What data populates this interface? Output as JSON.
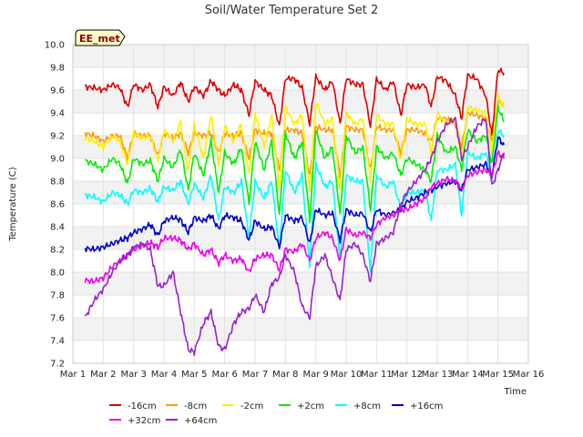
{
  "chart_data": {
    "type": "line",
    "title": "Soil/Water Temperature Set 2",
    "xlabel": "Time",
    "ylabel": "Temperature (C)",
    "badge": "EE_met",
    "ylim": [
      7.2,
      10.0
    ],
    "yticks": [
      "7.2",
      "7.4",
      "7.6",
      "7.8",
      "8.0",
      "8.2",
      "8.4",
      "8.6",
      "8.8",
      "9.0",
      "9.2",
      "9.4",
      "9.6",
      "9.8",
      "10.0"
    ],
    "xlim": [
      1,
      16
    ],
    "xticks": [
      "Mar 1",
      "Mar 2",
      "Mar 3",
      "Mar 4",
      "Mar 5",
      "Mar 6",
      "Mar 7",
      "Mar 8",
      "Mar 9",
      "Mar 10",
      "Mar 11",
      "Mar 12",
      "Mar 13",
      "Mar 14",
      "Mar 15",
      "Mar 16"
    ],
    "legend_position": "bottom",
    "series": [
      {
        "name": "-16cm",
        "color": "#dd0000",
        "x": [
          1.4,
          1.7,
          2.0,
          2.3,
          2.55,
          2.8,
          3.0,
          3.3,
          3.55,
          3.8,
          4.0,
          4.3,
          4.55,
          4.8,
          5.0,
          5.3,
          5.55,
          5.8,
          6.0,
          6.3,
          6.55,
          6.8,
          7.0,
          7.3,
          7.55,
          7.8,
          8.0,
          8.3,
          8.55,
          8.8,
          9.0,
          9.3,
          9.55,
          9.8,
          10.0,
          10.3,
          10.55,
          10.8,
          11.0,
          11.3,
          11.55,
          11.8,
          12.0,
          12.3,
          12.6,
          12.8,
          13.0,
          13.3,
          13.6,
          13.8,
          14.0,
          14.3,
          14.6,
          14.8,
          15.0,
          15.2
        ],
        "y": [
          9.63,
          9.62,
          9.6,
          9.65,
          9.62,
          9.45,
          9.65,
          9.6,
          9.65,
          9.45,
          9.63,
          9.55,
          9.67,
          9.5,
          9.63,
          9.55,
          9.68,
          9.6,
          9.55,
          9.65,
          9.6,
          9.38,
          9.68,
          9.6,
          9.55,
          9.28,
          9.7,
          9.7,
          9.62,
          9.3,
          9.72,
          9.6,
          9.68,
          9.3,
          9.7,
          9.65,
          9.65,
          9.28,
          9.7,
          9.6,
          9.68,
          9.38,
          9.65,
          9.62,
          9.65,
          9.45,
          9.72,
          9.68,
          9.55,
          9.35,
          9.73,
          9.7,
          9.55,
          9.2,
          9.78,
          9.75
        ]
      },
      {
        "name": "-8cm",
        "color": "#ff9900",
        "x": [
          1.4,
          1.7,
          2.0,
          2.3,
          2.55,
          2.8,
          3.0,
          3.3,
          3.55,
          3.8,
          4.0,
          4.3,
          4.55,
          4.8,
          5.0,
          5.3,
          5.55,
          5.8,
          6.0,
          6.3,
          6.55,
          6.8,
          7.0,
          7.3,
          7.55,
          7.8,
          8.0,
          8.3,
          8.55,
          8.8,
          9.0,
          9.3,
          9.55,
          9.8,
          10.0,
          10.3,
          10.55,
          10.8,
          11.0,
          11.3,
          11.55,
          11.8,
          12.0,
          12.3,
          12.6,
          12.8,
          13.0,
          13.3,
          13.6,
          13.8,
          14.0,
          14.3,
          14.6,
          14.8,
          15.0,
          15.2
        ],
        "y": [
          9.22,
          9.2,
          9.15,
          9.2,
          9.2,
          9.0,
          9.22,
          9.2,
          9.2,
          9.02,
          9.22,
          9.18,
          9.22,
          9.05,
          9.22,
          9.2,
          9.22,
          9.05,
          9.22,
          9.2,
          9.22,
          9.0,
          9.25,
          9.22,
          9.22,
          8.9,
          9.25,
          9.25,
          9.22,
          8.85,
          9.28,
          9.25,
          9.25,
          8.85,
          9.28,
          9.25,
          9.25,
          8.9,
          9.28,
          9.25,
          9.25,
          9.05,
          9.25,
          9.25,
          9.22,
          9.15,
          9.35,
          9.35,
          9.3,
          9.1,
          9.4,
          9.38,
          9.35,
          9.15,
          9.5,
          9.48
        ]
      },
      {
        "name": "-2cm",
        "color": "#ffee00",
        "x": [
          1.4,
          1.7,
          2.0,
          2.3,
          2.55,
          2.8,
          3.0,
          3.3,
          3.55,
          3.8,
          4.0,
          4.3,
          4.55,
          4.8,
          5.0,
          5.3,
          5.55,
          5.8,
          6.0,
          6.3,
          6.55,
          6.8,
          7.0,
          7.3,
          7.55,
          7.8,
          8.0,
          8.3,
          8.55,
          8.8,
          9.0,
          9.3,
          9.55,
          9.8,
          10.0,
          10.3,
          10.55,
          10.8,
          11.0,
          11.3,
          11.55,
          11.8,
          12.0,
          12.3,
          12.6,
          12.8,
          13.0,
          13.3,
          13.6,
          13.8,
          14.0,
          14.3,
          14.6,
          14.8,
          15.0,
          15.2
        ],
        "y": [
          9.18,
          9.15,
          9.1,
          9.2,
          9.15,
          8.95,
          9.22,
          9.18,
          9.2,
          8.98,
          9.25,
          9.15,
          9.32,
          8.88,
          9.3,
          9.0,
          9.38,
          8.95,
          9.28,
          9.15,
          9.3,
          8.85,
          9.4,
          9.1,
          9.38,
          8.75,
          9.45,
          9.3,
          9.38,
          8.7,
          9.5,
          9.3,
          9.35,
          8.72,
          9.4,
          9.3,
          9.35,
          8.8,
          9.38,
          9.3,
          9.3,
          8.98,
          9.35,
          9.3,
          9.3,
          9.05,
          9.4,
          9.3,
          9.35,
          9.0,
          9.45,
          9.42,
          9.4,
          9.05,
          9.55,
          9.45
        ]
      },
      {
        "name": "+2cm",
        "color": "#00ee00",
        "x": [
          1.4,
          1.7,
          2.0,
          2.3,
          2.55,
          2.8,
          3.0,
          3.3,
          3.55,
          3.8,
          4.0,
          4.3,
          4.55,
          4.8,
          5.0,
          5.3,
          5.55,
          5.8,
          6.0,
          6.3,
          6.55,
          6.8,
          7.0,
          7.3,
          7.55,
          7.8,
          8.0,
          8.3,
          8.55,
          8.8,
          9.0,
          9.3,
          9.55,
          9.8,
          10.0,
          10.3,
          10.55,
          10.8,
          11.0,
          11.3,
          11.55,
          11.8,
          12.0,
          12.3,
          12.6,
          12.8,
          13.0,
          13.3,
          13.6,
          13.8,
          14.0,
          14.3,
          14.6,
          14.8,
          15.0,
          15.2
        ],
        "y": [
          8.98,
          8.95,
          8.9,
          9.0,
          8.95,
          8.78,
          9.0,
          8.95,
          8.98,
          8.8,
          9.0,
          8.92,
          9.08,
          8.72,
          9.05,
          8.85,
          9.15,
          8.7,
          9.05,
          8.95,
          9.1,
          8.6,
          9.15,
          8.9,
          9.15,
          8.5,
          9.22,
          9.0,
          9.15,
          8.45,
          9.25,
          9.0,
          9.1,
          8.5,
          9.2,
          9.05,
          9.1,
          8.55,
          9.1,
          9.0,
          9.05,
          8.85,
          9.0,
          8.95,
          8.9,
          8.8,
          9.2,
          9.05,
          9.1,
          8.9,
          9.25,
          9.15,
          9.2,
          8.95,
          9.45,
          9.32
        ]
      },
      {
        "name": "+8cm",
        "color": "#00ffff",
        "x": [
          1.4,
          1.7,
          2.0,
          2.3,
          2.55,
          2.8,
          3.0,
          3.3,
          3.55,
          3.8,
          4.0,
          4.3,
          4.55,
          4.8,
          5.0,
          5.3,
          5.55,
          5.8,
          6.0,
          6.3,
          6.55,
          6.8,
          7.0,
          7.3,
          7.55,
          7.8,
          8.0,
          8.3,
          8.55,
          8.8,
          9.0,
          9.3,
          9.55,
          9.8,
          10.0,
          10.3,
          10.55,
          10.8,
          11.0,
          11.3,
          11.55,
          11.8,
          12.0,
          12.3,
          12.6,
          12.8,
          13.0,
          13.3,
          13.6,
          13.8,
          14.0,
          14.3,
          14.6,
          14.8,
          15.0,
          15.2
        ],
        "y": [
          8.68,
          8.66,
          8.62,
          8.7,
          8.68,
          8.6,
          8.72,
          8.7,
          8.74,
          8.62,
          8.75,
          8.72,
          8.8,
          8.6,
          8.78,
          8.65,
          8.85,
          8.45,
          8.75,
          8.7,
          8.8,
          8.3,
          8.8,
          8.65,
          8.8,
          8.2,
          8.9,
          8.7,
          8.85,
          8.05,
          8.95,
          8.75,
          8.8,
          8.1,
          8.85,
          8.8,
          8.8,
          8.0,
          8.85,
          8.75,
          8.8,
          8.55,
          8.7,
          8.7,
          8.72,
          8.45,
          8.9,
          8.9,
          8.95,
          8.5,
          9.05,
          9.0,
          9.05,
          8.8,
          9.25,
          9.2
        ]
      },
      {
        "name": "+16cm",
        "color": "#0000cc",
        "x": [
          1.4,
          1.7,
          2.0,
          2.3,
          2.55,
          2.8,
          3.0,
          3.3,
          3.55,
          3.8,
          4.0,
          4.3,
          4.55,
          4.8,
          5.0,
          5.3,
          5.55,
          5.8,
          6.0,
          6.3,
          6.55,
          6.8,
          7.0,
          7.3,
          7.55,
          7.8,
          8.0,
          8.3,
          8.55,
          8.8,
          9.0,
          9.3,
          9.55,
          9.8,
          10.0,
          10.3,
          10.55,
          10.8,
          11.0,
          11.3,
          11.55,
          11.8,
          12.0,
          12.3,
          12.6,
          12.8,
          13.0,
          13.3,
          13.6,
          13.8,
          14.0,
          14.3,
          14.6,
          14.8,
          15.0,
          15.2
        ],
        "y": [
          8.21,
          8.2,
          8.22,
          8.25,
          8.28,
          8.3,
          8.35,
          8.38,
          8.42,
          8.32,
          8.45,
          8.48,
          8.46,
          8.35,
          8.48,
          8.45,
          8.5,
          8.38,
          8.5,
          8.48,
          8.45,
          8.28,
          8.45,
          8.38,
          8.4,
          8.22,
          8.5,
          8.45,
          8.48,
          8.25,
          8.55,
          8.5,
          8.52,
          8.28,
          8.55,
          8.5,
          8.52,
          8.35,
          8.55,
          8.5,
          8.52,
          8.55,
          8.62,
          8.65,
          8.7,
          8.72,
          8.75,
          8.78,
          8.8,
          8.72,
          8.9,
          8.92,
          8.95,
          8.85,
          9.18,
          9.12
        ]
      },
      {
        "name": "+32cm",
        "color": "#ee00ee",
        "x": [
          1.4,
          1.7,
          2.0,
          2.3,
          2.55,
          2.8,
          3.0,
          3.3,
          3.55,
          3.8,
          4.0,
          4.3,
          4.55,
          4.8,
          5.0,
          5.3,
          5.55,
          5.8,
          6.0,
          6.3,
          6.55,
          6.8,
          7.0,
          7.3,
          7.55,
          7.8,
          8.0,
          8.3,
          8.55,
          8.8,
          9.0,
          9.3,
          9.55,
          9.8,
          10.0,
          10.3,
          10.55,
          10.8,
          11.0,
          11.3,
          11.55,
          11.8,
          12.0,
          12.3,
          12.6,
          12.8,
          13.0,
          13.3,
          13.6,
          13.8,
          14.0,
          14.3,
          14.6,
          14.8,
          15.0,
          15.2
        ],
        "y": [
          7.93,
          7.92,
          7.95,
          8.05,
          8.1,
          8.15,
          8.2,
          8.24,
          8.26,
          8.22,
          8.3,
          8.3,
          8.28,
          8.2,
          8.25,
          8.15,
          8.2,
          8.08,
          8.15,
          8.1,
          8.12,
          8.0,
          8.12,
          8.15,
          8.15,
          8.02,
          8.2,
          8.18,
          8.25,
          8.1,
          8.3,
          8.35,
          8.3,
          8.1,
          8.38,
          8.32,
          8.35,
          8.3,
          8.42,
          8.48,
          8.5,
          8.55,
          8.55,
          8.6,
          8.65,
          8.75,
          8.78,
          8.82,
          8.8,
          8.72,
          8.85,
          8.88,
          8.9,
          8.85,
          9.05,
          9.0
        ]
      },
      {
        "name": "+64cm",
        "color": "#9922cc",
        "x": [
          1.4,
          1.7,
          2.0,
          2.3,
          2.55,
          2.8,
          3.0,
          3.3,
          3.55,
          3.8,
          4.0,
          4.3,
          4.55,
          4.8,
          5.0,
          5.3,
          5.55,
          5.8,
          6.0,
          6.3,
          6.55,
          6.8,
          7.0,
          7.3,
          7.55,
          7.8,
          8.0,
          8.3,
          8.55,
          8.8,
          9.0,
          9.3,
          9.55,
          9.8,
          10.0,
          10.3,
          10.55,
          10.8,
          11.0,
          11.3,
          11.55,
          11.8,
          12.0,
          12.3,
          12.6,
          12.8,
          13.0,
          13.3,
          13.6,
          13.8,
          14.0,
          14.3,
          14.6,
          14.8,
          15.0,
          15.2
        ],
        "y": [
          7.6,
          7.75,
          7.85,
          8.0,
          8.1,
          8.15,
          8.22,
          8.25,
          8.2,
          7.88,
          7.88,
          8.0,
          7.65,
          7.32,
          7.3,
          7.55,
          7.65,
          7.35,
          7.32,
          7.55,
          7.65,
          7.68,
          7.8,
          7.65,
          7.9,
          7.95,
          8.15,
          8.0,
          7.7,
          7.6,
          8.05,
          8.15,
          7.95,
          7.75,
          8.2,
          8.25,
          8.15,
          7.92,
          8.25,
          8.3,
          8.35,
          8.6,
          8.7,
          8.8,
          8.9,
          9.0,
          9.15,
          9.3,
          9.35,
          9.0,
          9.1,
          9.28,
          9.35,
          8.75,
          8.9,
          9.05
        ]
      }
    ]
  }
}
